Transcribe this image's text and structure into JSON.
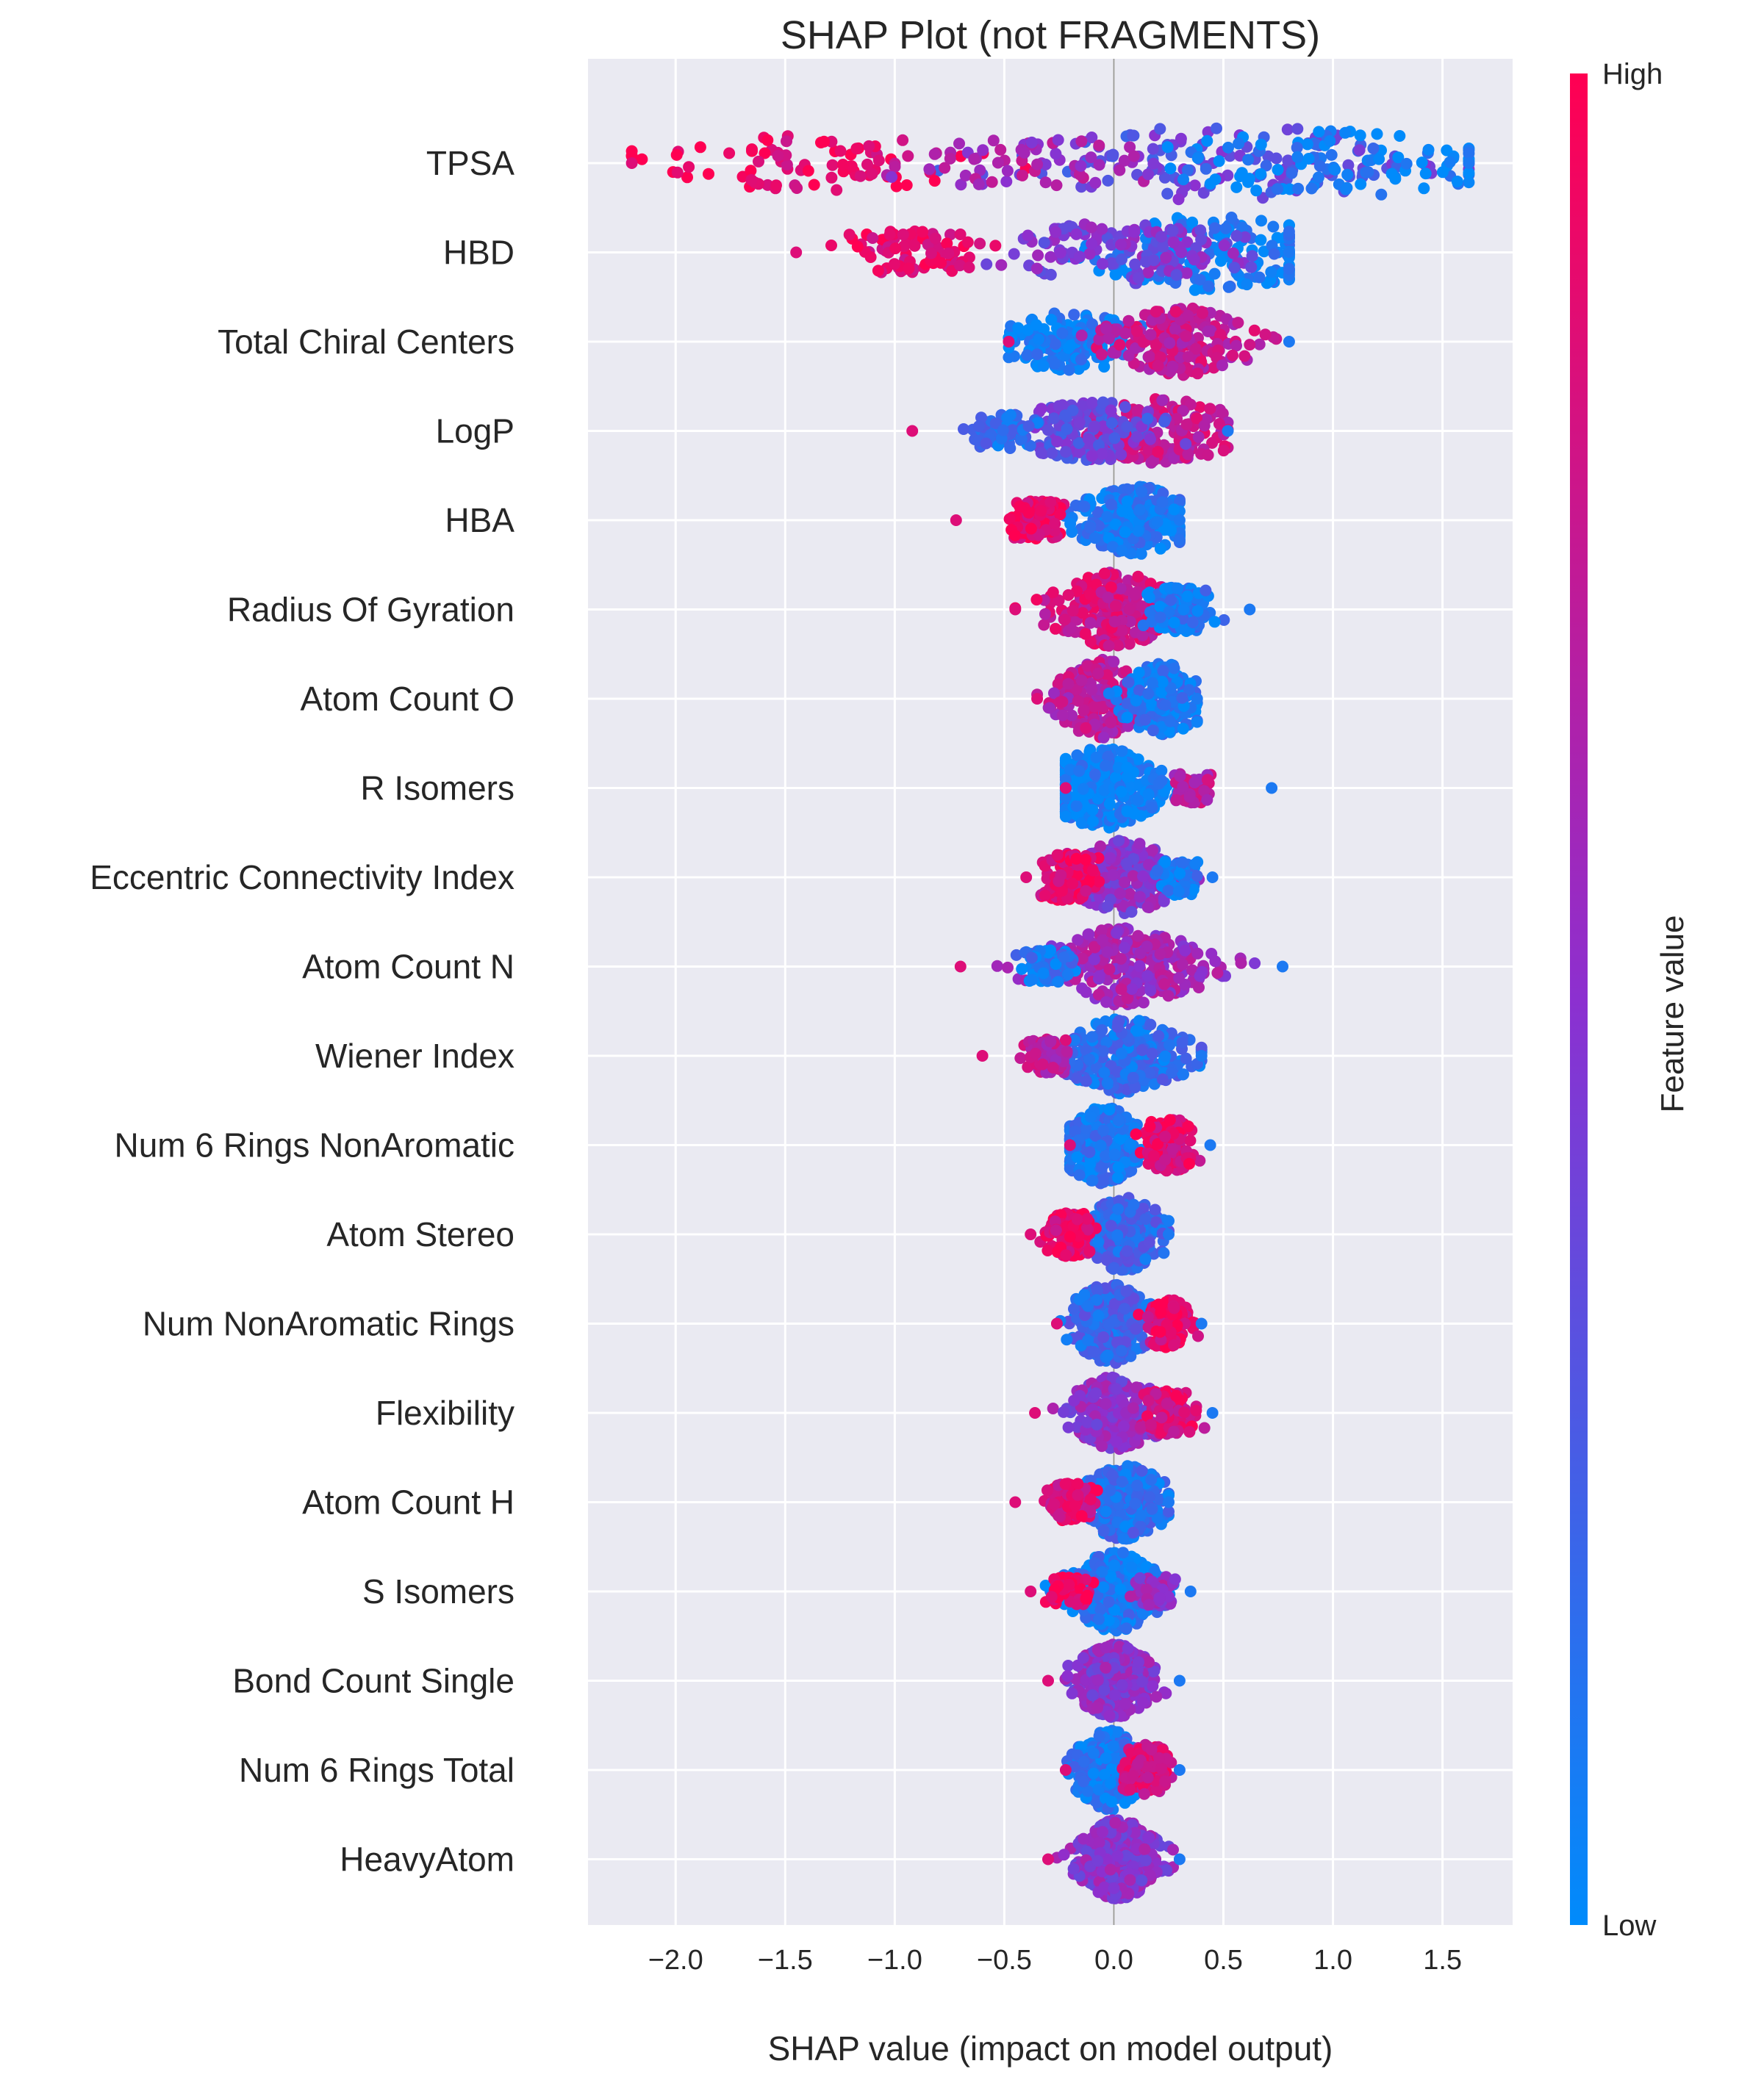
{
  "chart_data": {
    "type": "scatter",
    "subtype": "shap-beeswarm",
    "title": "SHAP Plot (not FRAGMENTS)",
    "xlabel": "SHAP value (impact on model output)",
    "ylabel": "",
    "xlim": [
      -2.4,
      1.82
    ],
    "x_ticks": [
      -2.0,
      -1.5,
      -1.0,
      -0.5,
      0.0,
      0.5,
      1.0,
      1.5
    ],
    "x_tick_labels": [
      "−2.0",
      "−1.5",
      "−1.0",
      "−0.5",
      "0.0",
      "0.5",
      "1.0",
      "1.5"
    ],
    "grid": true,
    "colorbar": {
      "label": "Feature value",
      "high_label": "High",
      "low_label": "Low",
      "high_color": "#ff0052",
      "mid_color": "#8c30d0",
      "low_color": "#008bfb"
    },
    "features": [
      {
        "name": "TPSA",
        "min": -2.2,
        "max": 1.62,
        "clusters": [
          {
            "x": 0.5,
            "width": 0.42,
            "color": 0.35
          },
          {
            "x": 1.05,
            "width": 0.34,
            "color": 0.05
          },
          {
            "x": -1.4,
            "width": 0.28,
            "color": 0.92
          },
          {
            "x": -0.4,
            "width": 0.22,
            "color": 0.6
          }
        ]
      },
      {
        "name": "HBD",
        "min": -1.45,
        "max": 0.8,
        "clusters": [
          {
            "x": 0.45,
            "width": 0.42,
            "color": 0.05
          },
          {
            "x": 0.05,
            "width": 0.32,
            "color": 0.45
          },
          {
            "x": -0.9,
            "width": 0.2,
            "color": 0.9
          }
        ]
      },
      {
        "name": "Total Chiral Centers",
        "min": -0.48,
        "max": 0.8,
        "clusters": [
          {
            "x": -0.2,
            "width": 0.3,
            "color": 0.05
          },
          {
            "x": 0.3,
            "width": 0.36,
            "color": 0.75
          }
        ]
      },
      {
        "name": "LogP",
        "min": -0.92,
        "max": 0.52,
        "clusters": [
          {
            "x": 0.2,
            "width": 0.34,
            "color": 0.75
          },
          {
            "x": -0.1,
            "width": 0.3,
            "color": 0.35
          },
          {
            "x": -0.5,
            "width": 0.14,
            "color": 0.15
          }
        ]
      },
      {
        "name": "HBA",
        "min": -0.72,
        "max": 0.3,
        "clusters": [
          {
            "x": 0.1,
            "width": 0.36,
            "color": 0.08
          },
          {
            "x": -0.35,
            "width": 0.16,
            "color": 0.92
          }
        ]
      },
      {
        "name": "Radius Of Gyration",
        "min": -0.45,
        "max": 0.62,
        "clusters": [
          {
            "x": 0.0,
            "width": 0.4,
            "color": 0.8
          },
          {
            "x": 0.3,
            "width": 0.2,
            "color": 0.1
          }
        ]
      },
      {
        "name": "Atom Count O",
        "min": -0.35,
        "max": 0.38,
        "clusters": [
          {
            "x": -0.05,
            "width": 0.44,
            "color": 0.7
          },
          {
            "x": 0.22,
            "width": 0.38,
            "color": 0.1
          }
        ]
      },
      {
        "name": "R Isomers",
        "min": -0.22,
        "max": 0.72,
        "clusters": [
          {
            "x": -0.05,
            "width": 0.5,
            "color": 0.05
          },
          {
            "x": 0.35,
            "width": 0.1,
            "color": 0.7
          }
        ]
      },
      {
        "name": "Eccentric Connectivity Index",
        "min": -0.4,
        "max": 0.45,
        "clusters": [
          {
            "x": 0.05,
            "width": 0.4,
            "color": 0.5
          },
          {
            "x": -0.2,
            "width": 0.22,
            "color": 0.9
          },
          {
            "x": 0.3,
            "width": 0.14,
            "color": 0.08
          }
        ]
      },
      {
        "name": "Atom Count N",
        "min": -0.7,
        "max": 0.77,
        "clusters": [
          {
            "x": 0.05,
            "width": 0.42,
            "color": 0.6
          },
          {
            "x": -0.3,
            "width": 0.12,
            "color": 0.1
          }
        ]
      },
      {
        "name": "Wiener Index",
        "min": -0.6,
        "max": 0.4,
        "clusters": [
          {
            "x": 0.05,
            "width": 0.42,
            "color": 0.15
          },
          {
            "x": -0.3,
            "width": 0.14,
            "color": 0.7
          }
        ]
      },
      {
        "name": "Num 6 Rings NonAromatic",
        "min": -0.2,
        "max": 0.44,
        "clusters": [
          {
            "x": -0.05,
            "width": 0.42,
            "color": 0.1
          },
          {
            "x": 0.25,
            "width": 0.26,
            "color": 0.88
          }
        ]
      },
      {
        "name": "Atom Stereo",
        "min": -0.38,
        "max": 0.25,
        "clusters": [
          {
            "x": 0.05,
            "width": 0.4,
            "color": 0.2
          },
          {
            "x": -0.2,
            "width": 0.2,
            "color": 0.9
          }
        ]
      },
      {
        "name": "Num NonAromatic Rings",
        "min": -0.26,
        "max": 0.4,
        "clusters": [
          {
            "x": -0.02,
            "width": 0.44,
            "color": 0.2
          },
          {
            "x": 0.25,
            "width": 0.22,
            "color": 0.9
          }
        ]
      },
      {
        "name": "Flexibility",
        "min": -0.36,
        "max": 0.45,
        "clusters": [
          {
            "x": 0.02,
            "width": 0.4,
            "color": 0.5
          },
          {
            "x": 0.25,
            "width": 0.2,
            "color": 0.85
          }
        ]
      },
      {
        "name": "Atom Count H",
        "min": -0.45,
        "max": 0.25,
        "clusters": [
          {
            "x": 0.05,
            "width": 0.4,
            "color": 0.15
          },
          {
            "x": -0.2,
            "width": 0.16,
            "color": 0.85
          }
        ]
      },
      {
        "name": "S Isomers",
        "min": -0.38,
        "max": 0.35,
        "clusters": [
          {
            "x": 0.0,
            "width": 0.44,
            "color": 0.1
          },
          {
            "x": -0.2,
            "width": 0.1,
            "color": 0.95
          },
          {
            "x": 0.2,
            "width": 0.1,
            "color": 0.55
          }
        ]
      },
      {
        "name": "Bond Count Single",
        "min": -0.3,
        "max": 0.3,
        "clusters": [
          {
            "x": 0.0,
            "width": 0.4,
            "color": 0.5
          }
        ]
      },
      {
        "name": "Num 6 Rings Total",
        "min": -0.22,
        "max": 0.3,
        "clusters": [
          {
            "x": -0.02,
            "width": 0.44,
            "color": 0.1
          },
          {
            "x": 0.15,
            "width": 0.24,
            "color": 0.85
          }
        ]
      },
      {
        "name": "HeavyAtom",
        "min": -0.3,
        "max": 0.3,
        "clusters": [
          {
            "x": 0.02,
            "width": 0.44,
            "color": 0.5
          }
        ]
      }
    ]
  }
}
